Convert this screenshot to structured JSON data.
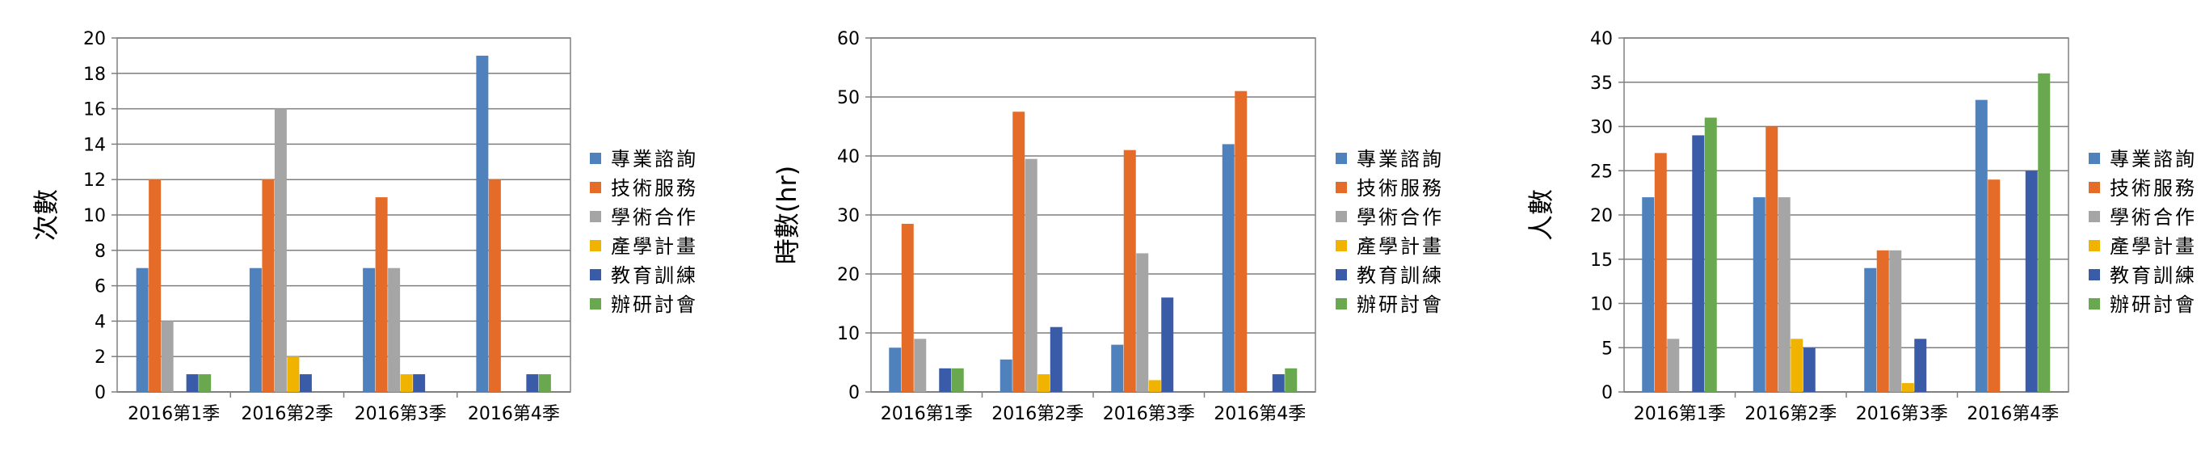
{
  "chart_data": [
    {
      "type": "bar",
      "ylabel": "次數",
      "ylim": [
        0,
        20
      ],
      "yticks": [
        0,
        2,
        4,
        6,
        8,
        10,
        12,
        14,
        16,
        18,
        20
      ],
      "ytick_labels": [
        "0",
        "2",
        "4",
        "6",
        "8",
        "10",
        "12",
        "14",
        "16",
        "18",
        "20"
      ],
      "grid": true,
      "legend": "right",
      "categories": [
        "2016第1季",
        "2016第2季",
        "2016第3季",
        "2016第4季"
      ],
      "series": [
        {
          "name": "專業諮詢",
          "color": "#4F81BD",
          "values": [
            7,
            7,
            7,
            19
          ]
        },
        {
          "name": "技術服務",
          "color": "#E46C28",
          "values": [
            12,
            12,
            11,
            12
          ]
        },
        {
          "name": "學術合作",
          "color": "#A5A5A5",
          "values": [
            4,
            16,
            7,
            0
          ]
        },
        {
          "name": "產學計畫",
          "color": "#F0B400",
          "values": [
            0,
            2,
            1,
            0
          ]
        },
        {
          "name": "教育訓練",
          "color": "#3A5BA7",
          "values": [
            1,
            1,
            1,
            1
          ]
        },
        {
          "name": "辦研討會",
          "color": "#6AA84F",
          "values": [
            1,
            0,
            0,
            1
          ]
        }
      ]
    },
    {
      "type": "bar",
      "ylabel": "時數(hr)",
      "ylim": [
        0,
        60
      ],
      "yticks": [
        0,
        10,
        20,
        30,
        40,
        50,
        60
      ],
      "ytick_labels": [
        "0",
        "10",
        "20",
        "30",
        "40",
        "50",
        "60"
      ],
      "grid": true,
      "legend": "right",
      "categories": [
        "2016第1季",
        "2016第2季",
        "2016第3季",
        "2016第4季"
      ],
      "series": [
        {
          "name": "專業諮詢",
          "color": "#4F81BD",
          "values": [
            7.5,
            5.5,
            8,
            42
          ]
        },
        {
          "name": "技術服務",
          "color": "#E46C28",
          "values": [
            28.5,
            47.5,
            41,
            51
          ]
        },
        {
          "name": "學術合作",
          "color": "#A5A5A5",
          "values": [
            9,
            39.5,
            23.5,
            0
          ]
        },
        {
          "name": "產學計畫",
          "color": "#F0B400",
          "values": [
            0,
            3,
            2,
            0
          ]
        },
        {
          "name": "教育訓練",
          "color": "#3A5BA7",
          "values": [
            4,
            11,
            16,
            3
          ]
        },
        {
          "name": "辦研討會",
          "color": "#6AA84F",
          "values": [
            4,
            0,
            0,
            4
          ]
        }
      ]
    },
    {
      "type": "bar",
      "ylabel": "人數",
      "ylim": [
        0,
        40
      ],
      "yticks": [
        0,
        5,
        10,
        15,
        20,
        25,
        30,
        35,
        40
      ],
      "ytick_labels": [
        "0",
        "5",
        "10",
        "15",
        "20",
        "25",
        "30",
        "35",
        "40"
      ],
      "grid": true,
      "legend": "right",
      "categories": [
        "2016第1季",
        "2016第2季",
        "2016第3季",
        "2016第4季"
      ],
      "series": [
        {
          "name": "專業諮詢",
          "color": "#4F81BD",
          "values": [
            22,
            22,
            14,
            33
          ]
        },
        {
          "name": "技術服務",
          "color": "#E46C28",
          "values": [
            27,
            30,
            16,
            24
          ]
        },
        {
          "name": "學術合作",
          "color": "#A5A5A5",
          "values": [
            6,
            22,
            16,
            0
          ]
        },
        {
          "name": "產學計畫",
          "color": "#F0B400",
          "values": [
            0,
            6,
            1,
            0
          ]
        },
        {
          "name": "教育訓練",
          "color": "#3A5BA7",
          "values": [
            29,
            5,
            6,
            25
          ]
        },
        {
          "name": "辦研討會",
          "color": "#6AA84F",
          "values": [
            31,
            0,
            0,
            36
          ]
        }
      ]
    }
  ]
}
